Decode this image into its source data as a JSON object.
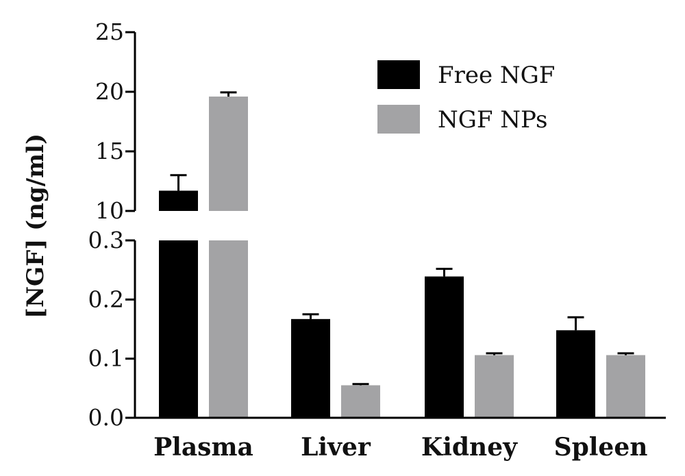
{
  "chart_data": {
    "type": "bar",
    "ylabel": "[NGF] (ng/ml)",
    "categories": [
      "Plasma",
      "Liver",
      "Kidney",
      "Spleen"
    ],
    "series": [
      {
        "name": "Free NGF",
        "color": "#000000",
        "values": [
          11.7,
          0.167,
          0.239,
          0.148
        ],
        "errors": [
          1.3,
          0.008,
          0.013,
          0.022
        ]
      },
      {
        "name": "NGF NPs",
        "color": "#a3a3a5",
        "values": [
          19.6,
          0.055,
          0.106,
          0.106
        ],
        "errors": [
          0.35,
          0.002,
          0.003,
          0.003
        ]
      }
    ],
    "y_axis_break": {
      "lower_range": [
        0,
        0.3
      ],
      "lower_ticks": [
        "0.0",
        "0.1",
        "0.2",
        "0.3"
      ],
      "upper_range": [
        10,
        25
      ],
      "upper_ticks": [
        "10",
        "15",
        "20",
        "25"
      ]
    },
    "legend_position": "top-right"
  }
}
